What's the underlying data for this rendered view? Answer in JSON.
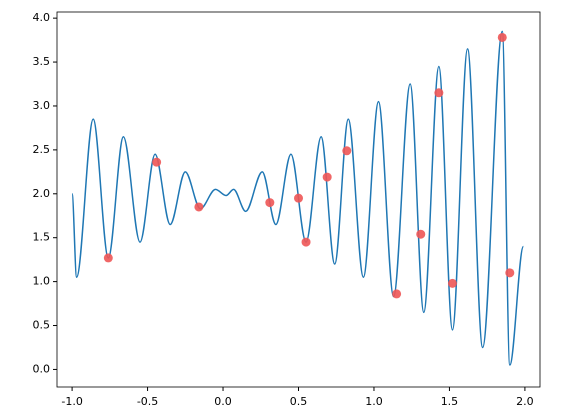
{
  "chart_data": {
    "type": "line",
    "xlim": [
      -1.1,
      2.1
    ],
    "ylim": [
      -0.2,
      4.07
    ],
    "xticks": [
      {
        "value": -1,
        "label": "-1.0"
      },
      {
        "value": -0.5,
        "label": "-0.5"
      },
      {
        "value": 0,
        "label": "0.0"
      },
      {
        "value": 0.5,
        "label": "0.5"
      },
      {
        "value": 1,
        "label": "1.0"
      },
      {
        "value": 1.5,
        "label": "1.5"
      },
      {
        "value": 2,
        "label": "2.0"
      }
    ],
    "yticks": [
      {
        "value": 0,
        "label": "0.0"
      },
      {
        "value": 0.5,
        "label": "0.5"
      },
      {
        "value": 1,
        "label": "1.0"
      },
      {
        "value": 1.5,
        "label": "1.5"
      },
      {
        "value": 2,
        "label": "2.0"
      },
      {
        "value": 2.5,
        "label": "2.5"
      },
      {
        "value": 3,
        "label": "3.0"
      },
      {
        "value": 3.5,
        "label": "3.5"
      },
      {
        "value": 4,
        "label": "4.0"
      }
    ],
    "series": [
      {
        "type": "line",
        "color": "#1f77b4",
        "x": [
          -1,
          -0.97,
          -0.86,
          -0.76,
          -0.66,
          -0.55,
          -0.45,
          -0.35,
          -0.25,
          -0.15,
          -0.05,
          0.02,
          0.07,
          0.15,
          0.26,
          0.35,
          0.45,
          0.55,
          0.65,
          0.74,
          0.83,
          0.93,
          1.03,
          1.13,
          1.24,
          1.33,
          1.43,
          1.52,
          1.62,
          1.72,
          1.85,
          1.9,
          1.99
        ],
        "values": [
          2.0,
          1.05,
          2.85,
          1.27,
          2.65,
          1.45,
          2.45,
          1.65,
          2.25,
          1.83,
          2.05,
          1.98,
          2.05,
          1.8,
          2.25,
          1.65,
          2.45,
          1.45,
          2.65,
          1.2,
          2.85,
          1.05,
          3.05,
          0.83,
          3.25,
          0.65,
          3.45,
          0.45,
          3.65,
          0.25,
          3.85,
          0.05,
          1.4
        ]
      },
      {
        "type": "scatter",
        "color": "#ee5555",
        "x": [
          -0.76,
          -0.44,
          -0.16,
          0.31,
          0.5,
          0.55,
          0.69,
          0.82,
          1.15,
          1.31,
          1.43,
          1.52,
          1.85,
          1.9
        ],
        "values": [
          1.27,
          2.36,
          1.85,
          1.9,
          1.95,
          1.45,
          2.19,
          2.49,
          0.86,
          1.54,
          3.15,
          0.98,
          3.78,
          1.1
        ]
      }
    ]
  }
}
